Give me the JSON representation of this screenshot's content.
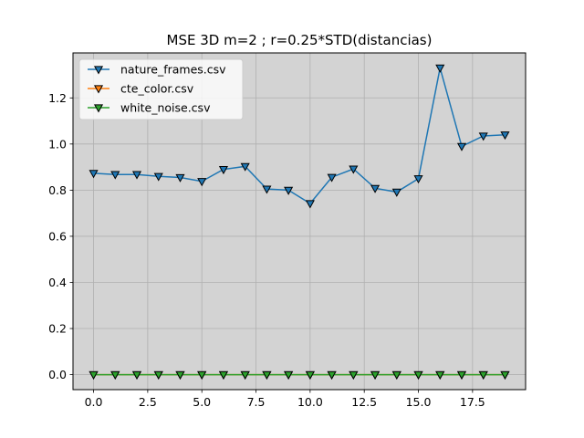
{
  "chart_data": {
    "type": "line",
    "title": "MSE 3D m=2 ; r=0.25*STD(distancias)",
    "xlabel": "",
    "ylabel": "",
    "xlim": [
      -0.95,
      19.95
    ],
    "ylim": [
      -0.065,
      1.395
    ],
    "xticks": [
      0.0,
      2.5,
      5.0,
      7.5,
      10.0,
      12.5,
      15.0,
      17.5
    ],
    "xtick_labels": [
      "0.0",
      "2.5",
      "5.0",
      "7.5",
      "10.0",
      "12.5",
      "15.0",
      "17.5"
    ],
    "yticks": [
      0.0,
      0.2,
      0.4,
      0.6,
      0.8,
      1.0,
      1.2
    ],
    "ytick_labels": [
      "0.0",
      "0.2",
      "0.4",
      "0.6",
      "0.8",
      "1.0",
      "1.2"
    ],
    "grid": true,
    "legend_position": "top-left",
    "background": "#d3d3d3",
    "marker": "down-triangle",
    "x": [
      0,
      1,
      2,
      3,
      4,
      5,
      6,
      7,
      8,
      9,
      10,
      11,
      12,
      13,
      14,
      15,
      16,
      17,
      18,
      19
    ],
    "series": [
      {
        "name": "nature_frames.csv",
        "color": "#1f77b4",
        "values": [
          0.873,
          0.868,
          0.868,
          0.86,
          0.855,
          0.838,
          0.89,
          0.903,
          0.805,
          0.8,
          0.742,
          0.856,
          0.892,
          0.808,
          0.792,
          0.85,
          1.33,
          0.99,
          1.035,
          1.04
        ]
      },
      {
        "name": "cte_color.csv",
        "color": "#ff7f0e",
        "values": [
          0,
          0,
          0,
          0,
          0,
          0,
          0,
          0,
          0,
          0,
          0,
          0,
          0,
          0,
          0,
          0,
          0,
          0,
          0,
          0
        ]
      },
      {
        "name": "white_noise.csv",
        "color": "#2ca02c",
        "values": [
          0,
          0,
          0,
          0,
          0,
          0,
          0,
          0,
          0,
          0,
          0,
          0,
          0,
          0,
          0,
          0,
          0,
          0,
          0,
          0
        ]
      }
    ]
  }
}
